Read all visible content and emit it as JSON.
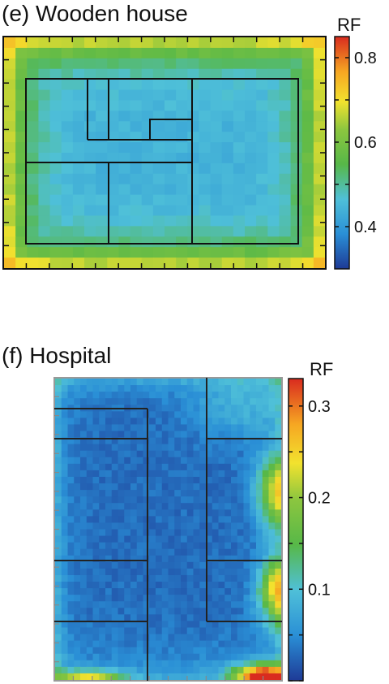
{
  "chart_data": [
    {
      "type": "heatmap",
      "title": "(e) Wooden house",
      "colorbar": {
        "label": "RF",
        "range": [
          0.3,
          0.85
        ],
        "ticks": [
          {
            "value": 0.4,
            "label": "0.4"
          },
          {
            "value": 0.6,
            "label": "0.6"
          },
          {
            "value": 0.8,
            "label": "0.8"
          }
        ]
      },
      "field": {
        "model": "edge",
        "center": 0.44,
        "edge": 0.72,
        "corner": 0.84,
        "columns": 28,
        "rows": 22
      },
      "grid": false
    },
    {
      "type": "heatmap",
      "title": "(f) Hospital",
      "colorbar": {
        "label": "RF",
        "range": [
          0.0,
          0.33
        ],
        "ticks": [
          {
            "value": 0.1,
            "label": "0.1"
          },
          {
            "value": 0.2,
            "label": "0.2"
          },
          {
            "value": 0.3,
            "label": "0.3"
          }
        ]
      },
      "field": {
        "model": "rooms",
        "background": 0.03,
        "columns": 36,
        "rows": 46
      },
      "grid": false
    }
  ]
}
